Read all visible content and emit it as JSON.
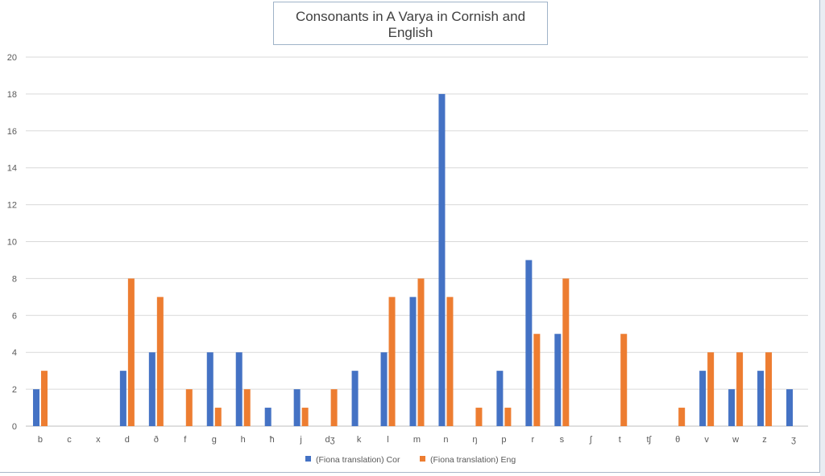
{
  "chart_data": {
    "type": "bar",
    "title": "Consonants in A Varya in Cornish and English",
    "xlabel": "",
    "ylabel": "",
    "ylim": [
      0,
      20
    ],
    "yticks": [
      0,
      2,
      4,
      6,
      8,
      10,
      12,
      14,
      16,
      18,
      20
    ],
    "grid": true,
    "legend_position": "bottom",
    "categories": [
      "b",
      "c",
      "x",
      "d",
      "ð",
      "f",
      "g",
      "h",
      "ħ",
      "j",
      "dʒ",
      "k",
      "l",
      "m",
      "n",
      "ŋ",
      "p",
      "r",
      "s",
      "ʃ",
      "t",
      "tʃ",
      "θ",
      "v",
      "w",
      "z",
      "ʒ"
    ],
    "series": [
      {
        "name": "(Fiona translation) Cor",
        "color": "#4472c4",
        "values": [
          2,
          0,
          0,
          3,
          4,
          0,
          4,
          4,
          1,
          2,
          0,
          3,
          4,
          7,
          18,
          0,
          3,
          9,
          5,
          0,
          0,
          0,
          0,
          3,
          2,
          3,
          2
        ]
      },
      {
        "name": "(Fiona translation) Eng",
        "color": "#ed7d31",
        "values": [
          3,
          0,
          0,
          8,
          7,
          2,
          1,
          2,
          0,
          1,
          2,
          0,
          7,
          8,
          7,
          1,
          1,
          5,
          8,
          0,
          5,
          0,
          1,
          4,
          4,
          4,
          0
        ]
      }
    ]
  }
}
